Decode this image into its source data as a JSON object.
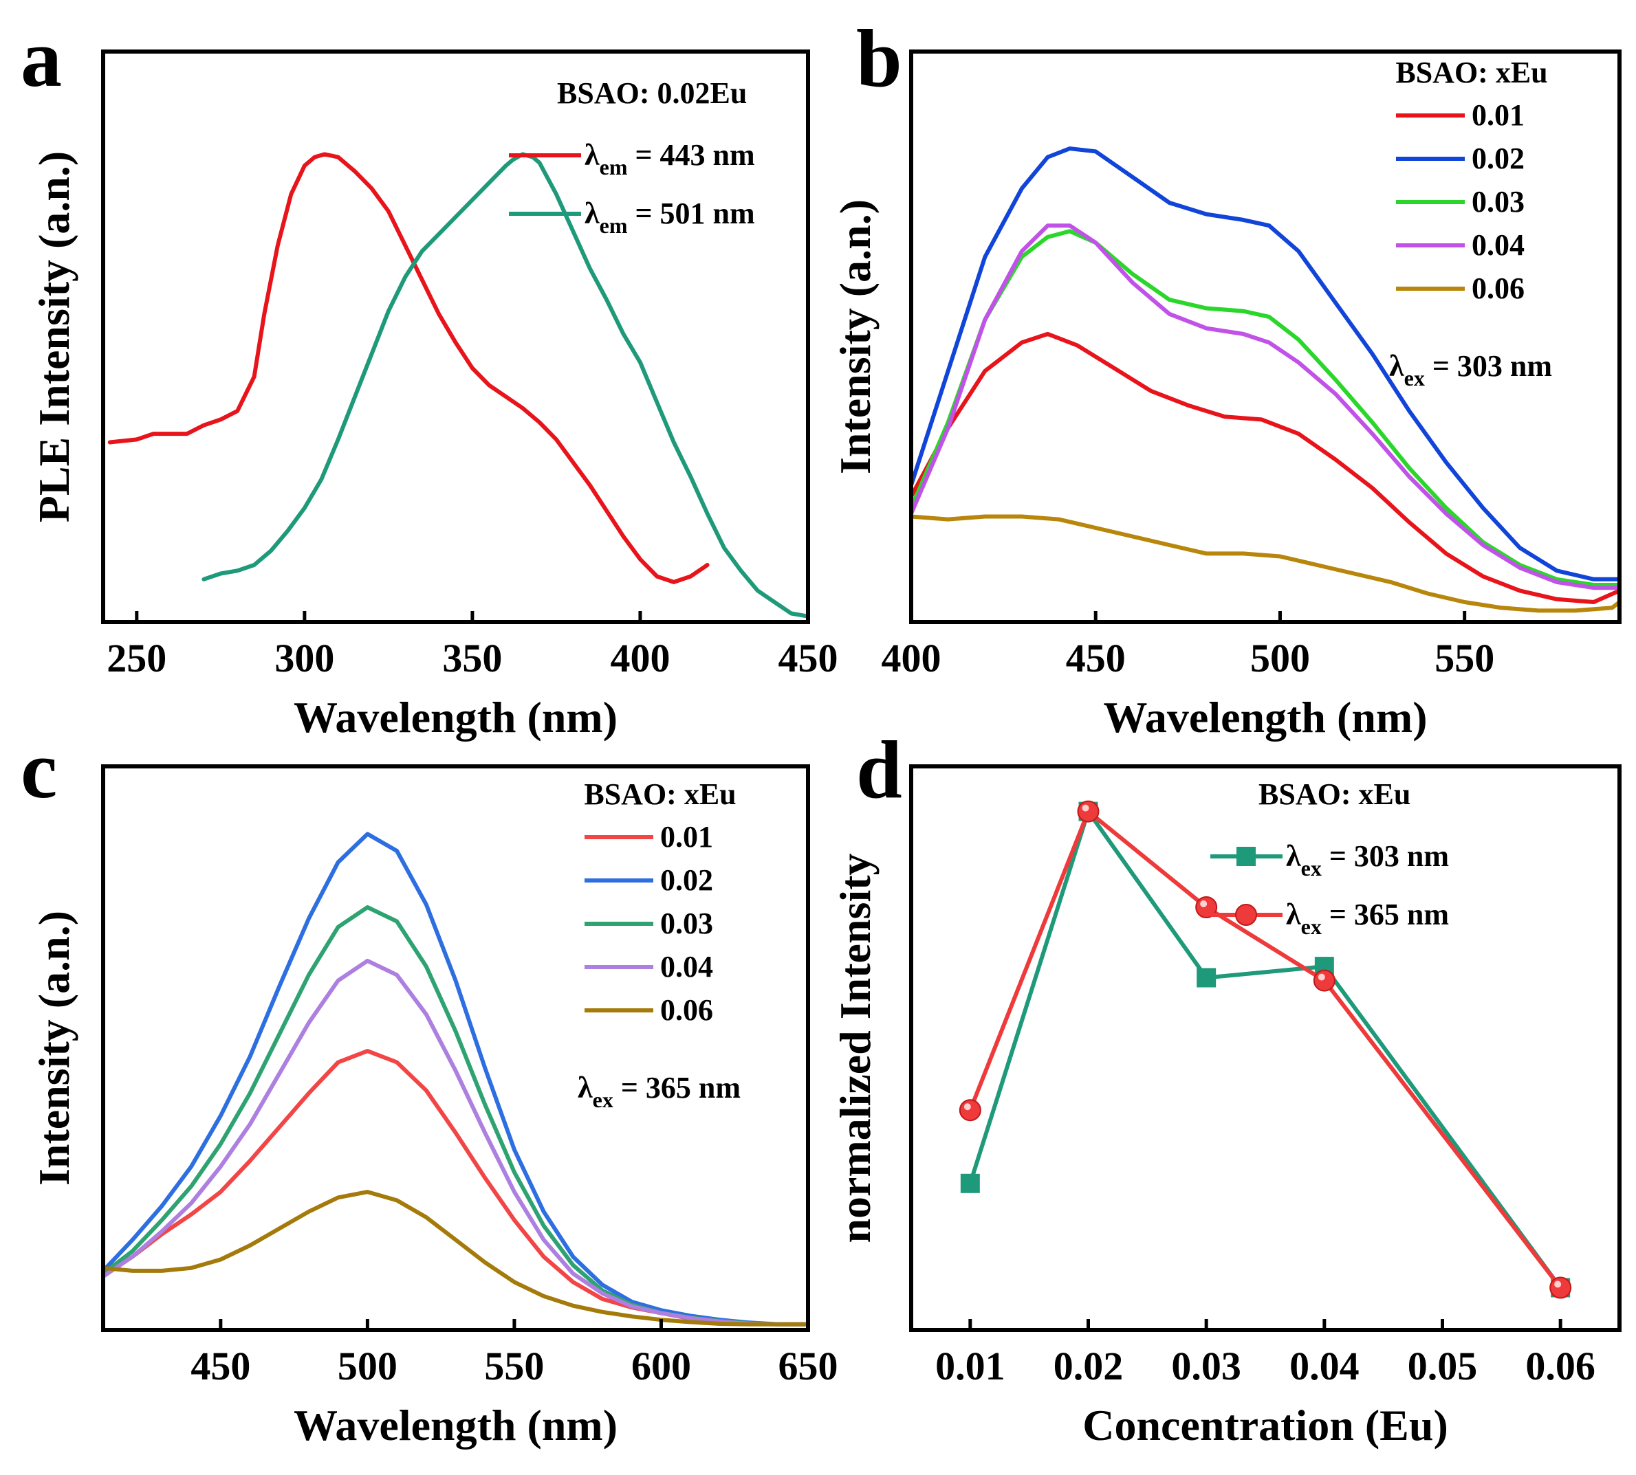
{
  "chart_data": [
    {
      "panel": "a",
      "type": "line",
      "title": "",
      "xlabel": "Wavelength (nm)",
      "ylabel": "PLE Intensity (a.n.)",
      "xlim": [
        240,
        450
      ],
      "ylim": [
        0,
        100
      ],
      "xticks": [
        250,
        300,
        350,
        400,
        450
      ],
      "yticks_shown": false,
      "legend": {
        "title": "BSAO: 0.02Eu",
        "position": "top-right",
        "entries": [
          {
            "prefix": "λ",
            "sub": "em",
            "rest": " = 443 nm",
            "color": "#e8141b"
          },
          {
            "prefix": "λ",
            "sub": "em",
            "rest": " = 501 nm",
            "color": "#1e9a7a"
          }
        ]
      },
      "series": [
        {
          "name": "λem = 443 nm",
          "color": "#e8141b",
          "x": [
            242,
            250,
            255,
            265,
            270,
            275,
            280,
            285,
            288,
            292,
            296,
            300,
            303,
            306,
            310,
            315,
            320,
            325,
            330,
            335,
            340,
            345,
            350,
            355,
            360,
            365,
            370,
            375,
            380,
            385,
            390,
            395,
            400,
            405,
            410,
            415,
            420
          ],
          "y": [
            31.5,
            32,
            33,
            33,
            34.5,
            35.5,
            37,
            43,
            54,
            66,
            75,
            80,
            81.5,
            82,
            81.5,
            79,
            76,
            72,
            66,
            60,
            54,
            49,
            44.5,
            41.5,
            39.5,
            37.5,
            35,
            32,
            28,
            24,
            19.5,
            15,
            11,
            8,
            7,
            8,
            10
          ]
        },
        {
          "name": "λem = 501 nm",
          "color": "#1e9a7a",
          "x": [
            270,
            275,
            280,
            285,
            290,
            295,
            300,
            305,
            310,
            315,
            320,
            325,
            330,
            335,
            340,
            345,
            350,
            355,
            360,
            362,
            365,
            368,
            370,
            375,
            380,
            385,
            390,
            395,
            400,
            405,
            410,
            415,
            420,
            425,
            430,
            435,
            440,
            445,
            450
          ]
        },
        {
          "name": "_",
          "color": "#1e9a7a",
          "x": [],
          "y": []
        }
      ]
    },
    {
      "panel": "b",
      "type": "line",
      "title": "",
      "xlabel": "Wavelength (nm)",
      "ylabel": "Intensity (a.n.)",
      "xlim": [
        400,
        592
      ],
      "ylim": [
        0,
        100
      ],
      "xticks": [
        400,
        450,
        500,
        550
      ],
      "yticks_shown": false,
      "legend": {
        "title": "BSAO: xEu",
        "position": "top-right",
        "entries": [
          "0.01",
          "0.02",
          "0.03",
          "0.04",
          "0.06"
        ],
        "note_prefix": "λ",
        "note_sub": "ex",
        "note_rest": " = 303 nm"
      },
      "series": [
        {
          "name": "0.01",
          "color": "#e8141b",
          "x": [
            400,
            410,
            420,
            430,
            437,
            445,
            455,
            465,
            475,
            485,
            495,
            505,
            515,
            525,
            535,
            545,
            555,
            565,
            575,
            585,
            592
          ],
          "y": [
            22,
            34,
            44,
            49,
            50.5,
            48.5,
            44.5,
            40.5,
            38,
            36,
            35.5,
            33,
            28.5,
            23.5,
            17.5,
            12,
            8,
            5.5,
            4,
            3.5,
            5.5
          ]
        },
        {
          "name": "0.02",
          "color": "#1144d8",
          "x": [
            400,
            410,
            420,
            430,
            437,
            443,
            450,
            460,
            470,
            480,
            490,
            497,
            505,
            515,
            525,
            535,
            545,
            555,
            565,
            575,
            585,
            592
          ],
          "y": [
            24,
            44,
            64,
            76,
            81.5,
            83,
            82.5,
            78,
            73.5,
            71.5,
            70.5,
            69.5,
            65,
            56,
            47,
            37,
            28,
            20,
            13,
            9,
            7.5,
            7.5
          ]
        },
        {
          "name": "0.03",
          "color": "#2bd62b",
          "x": [
            400,
            410,
            420,
            430,
            437,
            443,
            450,
            460,
            470,
            480,
            490,
            497,
            505,
            515,
            525,
            535,
            545,
            555,
            565,
            575,
            585,
            592
          ],
          "y": [
            20,
            35,
            53,
            64,
            67.5,
            68.5,
            66.5,
            61,
            56.5,
            55,
            54.5,
            53.5,
            49.5,
            42.5,
            35,
            27,
            20,
            14,
            10,
            7.5,
            6.5,
            6.5
          ]
        },
        {
          "name": "0.04",
          "color": "#c152e8",
          "x": [
            400,
            410,
            420,
            430,
            437,
            443,
            450,
            460,
            470,
            480,
            490,
            497,
            505,
            515,
            525,
            535,
            545,
            555,
            565,
            575,
            585,
            592
          ],
          "y": [
            19,
            34,
            53,
            65,
            69.5,
            69.5,
            66.5,
            59.5,
            54,
            51.5,
            50.5,
            49,
            45.5,
            40,
            33,
            25.5,
            19,
            13.5,
            9.5,
            7,
            6,
            6
          ]
        },
        {
          "name": "0.06",
          "color": "#b8860b",
          "x": [
            400,
            410,
            420,
            430,
            440,
            450,
            460,
            470,
            480,
            490,
            500,
            510,
            520,
            530,
            540,
            550,
            560,
            570,
            580,
            590,
            592
          ],
          "y": [
            18.5,
            18,
            18.5,
            18.5,
            18,
            16.5,
            15,
            13.5,
            12,
            12,
            11.5,
            10,
            8.5,
            7,
            5,
            3.5,
            2.5,
            2,
            2,
            2.5,
            3.5
          ]
        }
      ]
    },
    {
      "panel": "c",
      "type": "line",
      "title": "",
      "xlabel": "Wavelength (nm)",
      "ylabel": "Intensity (a.n.)",
      "xlim": [
        410,
        650
      ],
      "ylim": [
        0,
        100
      ],
      "xticks": [
        450,
        500,
        550,
        600,
        650
      ],
      "yticks_shown": false,
      "legend": {
        "title": "BSAO: xEu",
        "position": "top-right",
        "entries": [
          "0.01",
          "0.02",
          "0.03",
          "0.04",
          "0.06"
        ],
        "note_prefix": "λ",
        "note_sub": "ex",
        "note_rest": " = 365 nm"
      },
      "series": [
        {
          "name": "0.01",
          "color": "#f24545",
          "x": [
            410,
            420,
            430,
            440,
            450,
            460,
            470,
            480,
            490,
            500,
            510,
            520,
            530,
            540,
            550,
            560,
            570,
            580,
            590,
            600,
            610,
            620,
            630,
            640,
            650
          ],
          "y": [
            10,
            13,
            17,
            20.5,
            24.5,
            30,
            36,
            42,
            47.5,
            49.5,
            47.5,
            42.5,
            35,
            27,
            19.5,
            13,
            8.5,
            5.5,
            4,
            3,
            2,
            1.5,
            1.2,
            1,
            1
          ]
        },
        {
          "name": "0.02",
          "color": "#2d6ee0",
          "x": [
            410,
            420,
            430,
            440,
            450,
            460,
            470,
            480,
            490,
            500,
            510,
            520,
            530,
            540,
            550,
            560,
            570,
            580,
            590,
            600,
            610,
            620,
            630,
            640,
            650
          ],
          "y": [
            10.5,
            16,
            22,
            29,
            38,
            48.5,
            61,
            73,
            83,
            88,
            85,
            75.5,
            62,
            46.5,
            32,
            21,
            13,
            8,
            5,
            3.5,
            2.5,
            1.8,
            1.3,
            1,
            1
          ]
        },
        {
          "name": "0.03",
          "color": "#2ea371",
          "x": [
            410,
            420,
            430,
            440,
            450,
            460,
            470,
            480,
            490,
            500,
            510,
            520,
            530,
            540,
            550,
            560,
            570,
            580,
            590,
            600,
            610,
            620,
            630,
            640,
            650
          ],
          "y": [
            10,
            14,
            19.5,
            25.5,
            33,
            42,
            52.5,
            63,
            71.5,
            75,
            72.5,
            64.5,
            53,
            40,
            28,
            18.5,
            11.5,
            7,
            4.5,
            3,
            2.2,
            1.6,
            1.2,
            1,
            1
          ]
        },
        {
          "name": "0.04",
          "color": "#ad7fe0",
          "x": [
            410,
            420,
            430,
            440,
            450,
            460,
            470,
            480,
            490,
            500,
            510,
            520,
            530,
            540,
            550,
            560,
            570,
            580,
            590,
            600,
            610,
            620,
            630,
            640,
            650
          ],
          "y": [
            9.5,
            13,
            17.5,
            22.5,
            29,
            36.5,
            45.5,
            54.5,
            62,
            65.5,
            63,
            56,
            46,
            35,
            24.5,
            16,
            10,
            6.5,
            4.2,
            3,
            2.1,
            1.5,
            1.1,
            1,
            1
          ]
        },
        {
          "name": "0.06",
          "color": "#a47a0a",
          "x": [
            410,
            420,
            430,
            440,
            450,
            460,
            470,
            480,
            490,
            500,
            510,
            520,
            530,
            540,
            550,
            560,
            570,
            580,
            590,
            600,
            610,
            620,
            630,
            640,
            650
          ],
          "y": [
            11,
            10.5,
            10.5,
            11,
            12.5,
            15,
            18,
            21,
            23.5,
            24.5,
            23,
            20,
            16,
            12,
            8.5,
            6,
            4.3,
            3.2,
            2.4,
            1.8,
            1.4,
            1.1,
            1,
            1,
            1
          ]
        }
      ]
    },
    {
      "panel": "d",
      "type": "line",
      "title": "",
      "xlabel": "Concentration (Eu)",
      "ylabel": "normalized Intensity",
      "xlim": [
        0.005,
        0.065
      ],
      "ylim": [
        0,
        100
      ],
      "xticks": [
        "0.01",
        "0.02",
        "0.03",
        "0.04",
        "0.05",
        "0.06"
      ],
      "yticks_shown": false,
      "legend": {
        "title": "BSAO: xEu",
        "position": "top-right",
        "entries": [
          {
            "prefix": "λ",
            "sub": "ex",
            "rest": " = 303 nm",
            "color": "#1e9a7a",
            "marker": "square"
          },
          {
            "prefix": "λ",
            "sub": "ex",
            "rest": " = 365 nm",
            "color": "#ee3a3a",
            "marker": "circle"
          }
        ]
      },
      "series": [
        {
          "name": "λex = 303 nm",
          "color": "#1e9a7a",
          "marker": "square",
          "x": [
            0.01,
            0.02,
            0.03,
            0.04,
            0.06
          ],
          "y": [
            26,
            92,
            62.5,
            64.5,
            7.5
          ]
        },
        {
          "name": "λex = 365 nm",
          "color": "#ee3a3a",
          "marker": "circle",
          "x": [
            0.01,
            0.02,
            0.03,
            0.04,
            0.06
          ],
          "y": [
            39,
            92,
            75,
            62,
            7.5
          ]
        }
      ]
    }
  ]
}
